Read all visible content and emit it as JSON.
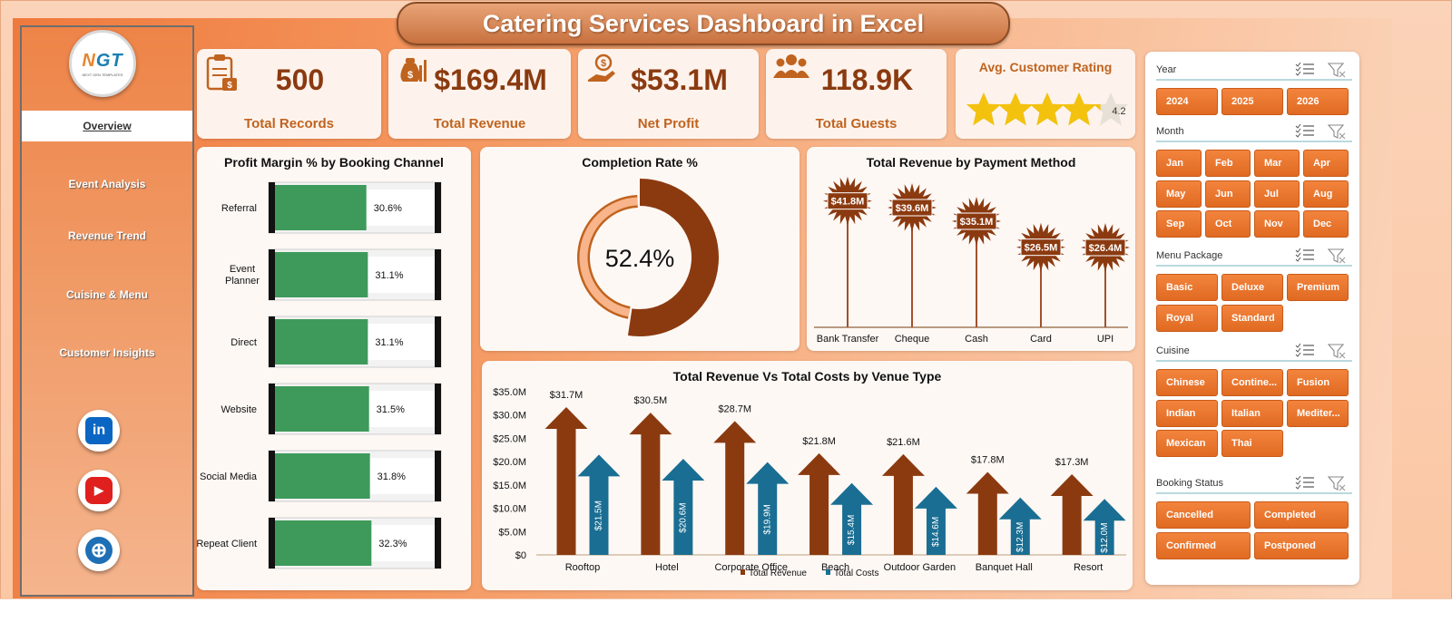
{
  "title": "Catering Services Dashboard in Excel",
  "logo": {
    "main_a": "N",
    "main_b": "GT",
    "sub": "NEXT GEN TEMPLATES"
  },
  "nav": [
    {
      "label": "Overview",
      "active": true
    },
    {
      "label": "Event Analysis",
      "active": false
    },
    {
      "label": "Revenue Trend",
      "active": false
    },
    {
      "label": "Cuisine & Menu",
      "active": false
    },
    {
      "label": "Customer Insights",
      "active": false
    }
  ],
  "social": [
    {
      "name": "linkedin",
      "glyph": "in",
      "color": "#0a66c2"
    },
    {
      "name": "youtube",
      "glyph": "▶",
      "color": "#e01f1f"
    },
    {
      "name": "website",
      "glyph": "⊕",
      "color": "#1e6fb5"
    }
  ],
  "kpis": [
    {
      "value": "500",
      "label": "Total Records"
    },
    {
      "value": "$169.4M",
      "label": "Total Revenue"
    },
    {
      "value": "$53.1M",
      "label": "Net Profit"
    },
    {
      "value": "118.9K",
      "label": "Total Guests"
    }
  ],
  "rating": {
    "title": "Avg. Customer Rating",
    "value": "4.2",
    "stars_filled": 4.2,
    "stars_max": 5
  },
  "colors": {
    "accent": "#8b3a10",
    "orange": "#e8762d",
    "cost": "#1a6e93",
    "green": "#3e9a5a"
  },
  "chart_data": [
    {
      "id": "profit_margin",
      "type": "bar",
      "title": "Profit Margin % by Booking Channel",
      "categories": [
        "Referral",
        "Event Planner",
        "Direct",
        "Website",
        "Social Media",
        "Repeat Client"
      ],
      "values": [
        30.6,
        31.1,
        31.1,
        31.5,
        31.8,
        32.3
      ],
      "value_labels": [
        "30.6%",
        "31.1%",
        "31.1%",
        "31.5%",
        "31.8%",
        "32.3%"
      ],
      "ylim": [
        0,
        100
      ]
    },
    {
      "id": "completion_rate",
      "type": "pie",
      "title": "Completion Rate %",
      "values": [
        52.4,
        47.6
      ],
      "center_label": "52.4%"
    },
    {
      "id": "revenue_payment",
      "type": "bar",
      "title": "Total Revenue  by Payment Method",
      "categories": [
        "Bank Transfer",
        "Cheque",
        "Cash",
        "Card",
        "UPI"
      ],
      "values": [
        41.8,
        39.6,
        35.1,
        26.5,
        26.4
      ],
      "value_labels": [
        "$41.8M",
        "$39.6M",
        "$35.1M",
        "$26.5M",
        "$26.4M"
      ]
    },
    {
      "id": "revenue_vs_costs",
      "type": "bar",
      "title": "Total Revenue Vs Total Costs by Venue Type",
      "categories": [
        "Rooftop",
        "Hotel",
        "Corporate Office",
        "Beach",
        "Outdoor Garden",
        "Banquet Hall",
        "Resort"
      ],
      "series": [
        {
          "name": "Total Revenue",
          "values": [
            31.7,
            30.5,
            28.7,
            21.8,
            21.6,
            17.8,
            17.3
          ],
          "labels": [
            "$31.7M",
            "$30.5M",
            "$28.7M",
            "$21.8M",
            "$21.6M",
            "$17.8M",
            "$17.3M"
          ],
          "color": "#8b3a10"
        },
        {
          "name": "Total Costs",
          "values": [
            21.5,
            20.6,
            19.9,
            15.4,
            14.6,
            12.3,
            12.0
          ],
          "labels": [
            "$21.5M",
            "$20.6M",
            "$19.9M",
            "$15.4M",
            "$14.6M",
            "$12.3M",
            "$12.0M"
          ],
          "color": "#1a6e93"
        }
      ],
      "ylim": [
        0,
        35
      ],
      "yticks": [
        "$0",
        "$5.0M",
        "$10.0M",
        "$15.0M",
        "$20.0M",
        "$25.0M",
        "$30.0M",
        "$35.0M"
      ],
      "legend": "bottom"
    }
  ],
  "slicers": [
    {
      "name": "Year",
      "items": [
        "2024",
        "2025",
        "2026"
      ],
      "cols": 3
    },
    {
      "name": "Month",
      "items": [
        "Jan",
        "Feb",
        "Mar",
        "Apr",
        "May",
        "Jun",
        "Jul",
        "Aug",
        "Sep",
        "Oct",
        "Nov",
        "Dec"
      ],
      "cols": 4
    },
    {
      "name": "Menu Package",
      "items": [
        "Basic",
        "Deluxe",
        "Premium",
        "Royal",
        "Standard"
      ],
      "cols": 3
    },
    {
      "name": "Cuisine",
      "items": [
        "Chinese",
        "Contine...",
        "Fusion",
        "Indian",
        "Italian",
        "Mediter...",
        "Mexican",
        "Thai"
      ],
      "cols": 3
    },
    {
      "name": "Booking Status",
      "items": [
        "Cancelled",
        "Completed",
        "Confirmed",
        "Postponed"
      ],
      "cols": 2
    }
  ]
}
